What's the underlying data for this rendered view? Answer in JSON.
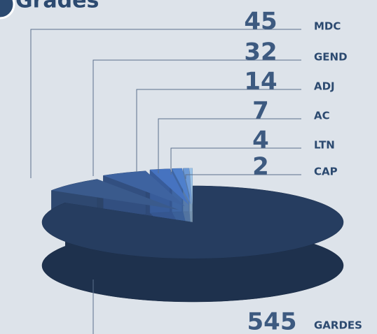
{
  "chart_data": {
    "type": "pie",
    "title": "Grades",
    "categories": [
      "MDC",
      "GEND",
      "ADJ",
      "AC",
      "LTN",
      "CAP",
      "GARDES"
    ],
    "values": [
      45,
      32,
      14,
      7,
      4,
      2,
      545
    ],
    "colors": [
      "#3a5a8c",
      "#3e63a0",
      "#4673c0",
      "#4f80cc",
      "#6d9ad6",
      "#9cc3e8",
      "#263d60"
    ]
  }
}
